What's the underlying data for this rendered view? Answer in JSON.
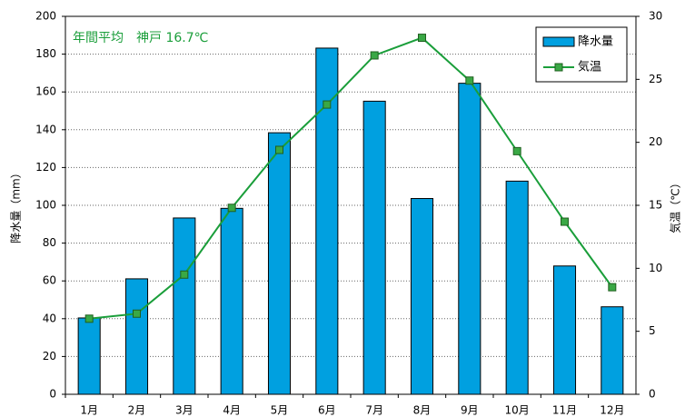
{
  "chart_data": {
    "type": "bar-line",
    "annotation": "年間平均　神戸 16.7℃",
    "ylabel": "降水量（mm）",
    "y2label": "気温（℃）",
    "categories": [
      "1月",
      "2月",
      "3月",
      "4月",
      "5月",
      "6月",
      "7月",
      "8月",
      "9月",
      "10月",
      "11月",
      "12月"
    ],
    "series": [
      {
        "name": "降水量",
        "type": "bar",
        "color": "#00a0e0",
        "values": [
          40.4,
          61.1,
          93.3,
          98.4,
          138.4,
          183.2,
          155.1,
          103.6,
          164.6,
          112.8,
          67.9,
          46.3
        ]
      },
      {
        "name": "気温",
        "type": "line",
        "axis": "y2",
        "color": "#1a9e3a",
        "marker_color": "#3aa845",
        "values": [
          6.0,
          6.4,
          9.5,
          14.8,
          19.4,
          23.0,
          26.9,
          28.3,
          24.9,
          19.3,
          13.7,
          8.5
        ]
      }
    ],
    "ylim": [
      0,
      200
    ],
    "yticks": [
      0,
      20,
      40,
      60,
      80,
      100,
      120,
      140,
      160,
      180,
      200
    ],
    "y2lim": [
      0,
      30
    ],
    "y2ticks": [
      0,
      5,
      10,
      15,
      20,
      25,
      30
    ],
    "grid": true,
    "legend": "upper right"
  }
}
